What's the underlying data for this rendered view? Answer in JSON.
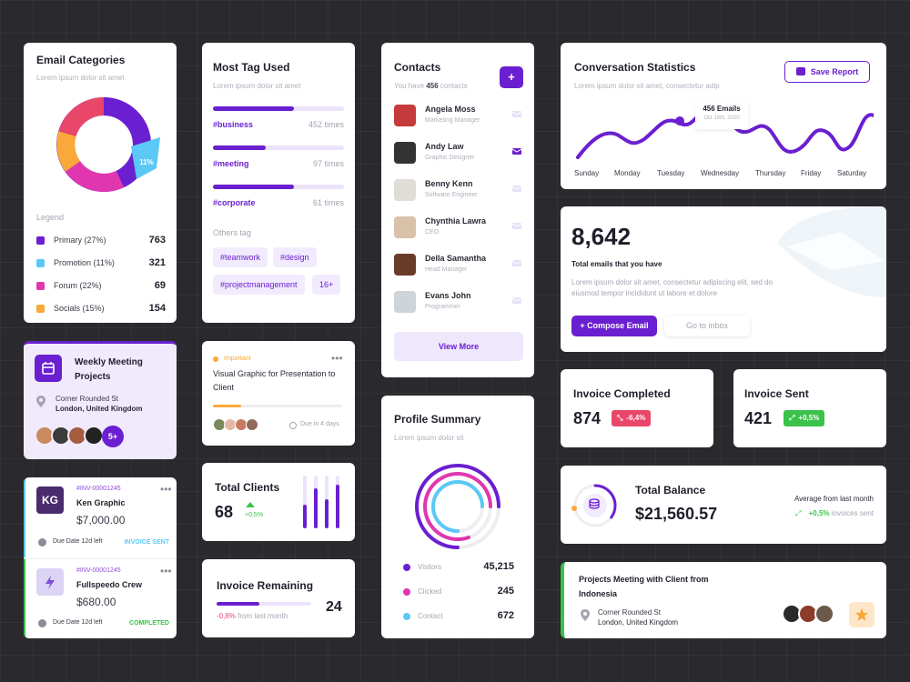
{
  "email_categories": {
    "title": "Email Categories",
    "subtitle": "Lorem ipsum dolor sit amet",
    "donut_label": "11%",
    "legend_title": "Legend",
    "items": [
      {
        "label": "Primary (27%)",
        "value": "763",
        "color": "#6a1fd0"
      },
      {
        "label": "Promotion (11%)",
        "value": "321",
        "color": "#5bc8f5"
      },
      {
        "label": "Forum (22%)",
        "value": "69",
        "color": "#e037b0"
      },
      {
        "label": "Socials (15%)",
        "value": "154",
        "color": "#f9a83a"
      }
    ]
  },
  "most_tag": {
    "title": "Most Tag Used",
    "subtitle": "Lorem ipsum dolor sit amet",
    "tags": [
      {
        "name": "#business",
        "times": "452 times",
        "fill": 0.62
      },
      {
        "name": "#meeting",
        "times": "97 times",
        "fill": 0.4
      },
      {
        "name": "#corporate",
        "times": "61 times",
        "fill": 0.62
      }
    ],
    "others_title": "Others tag",
    "chips": [
      "#teamwork",
      "#design",
      "#projectmanagement",
      "16+"
    ]
  },
  "contacts": {
    "title": "Contacts",
    "subtitle_prefix": "You have",
    "count": "456",
    "subtitle_suffix": "contacts",
    "add_symbol": "+",
    "people": [
      {
        "name": "Angela Moss",
        "role": "Marketing Manager",
        "color": "#c53a3a"
      },
      {
        "name": "Andy Law",
        "role": "Graphic Designer",
        "color": "#333"
      },
      {
        "name": "Benny Kenn",
        "role": "Software Engineer",
        "color": "#e0ddd8"
      },
      {
        "name": "Chynthia Lawra",
        "role": "CEO",
        "color": "#d9c2a9"
      },
      {
        "name": "Della Samantha",
        "role": "Head Manager",
        "color": "#6b3b2a"
      },
      {
        "name": "Evans John",
        "role": "Programmer",
        "color": "#cfd4da"
      }
    ],
    "view_more": "View More"
  },
  "conversation": {
    "title": "Conversation Statistics",
    "subtitle": "Lorem ipsum dolor sit amet, consectetur adip",
    "save_label": "Save Report",
    "tooltip_value": "456 Emails",
    "tooltip_date": "Oct 18th, 2020",
    "days": [
      "Sunday",
      "Monday",
      "Tuesday",
      "Wednesday",
      "Thursday",
      "Friday",
      "Saturday"
    ]
  },
  "total_emails": {
    "value": "8,642",
    "label": "Total emails that you have",
    "desc": "Lorem ipsum dolor sit amet, consectetur adipiscing elit, sed do eiusmod tempor incididunt ut labore et dolore",
    "compose": "+ Compose Email",
    "inbox": "Go to inbox"
  },
  "weekly": {
    "title": "Weekly Meeting Projects",
    "addr1": "Corner Rounded St",
    "addr2": "London, United Kingdom",
    "more": "5+"
  },
  "important": {
    "flag": "Important",
    "text": "Visual Graphic for Presentation to Client",
    "due": "Due in 4 days",
    "progress": 0.22
  },
  "total_clients": {
    "title": "Total Clients",
    "value": "68",
    "change": "+0,5%"
  },
  "invoice_remaining": {
    "title": "Invoice Remaining",
    "value": "24",
    "change": "-0,8%",
    "change_suffix": "from last month",
    "progress": 0.45
  },
  "invoices": [
    {
      "id": "#INV-00001245",
      "initials": "KG",
      "name": "Ken Graphic",
      "amount": "$7,000.00",
      "due": "Due Date 12d left",
      "status": "INVOICE SENT",
      "status_color": "#5bc8f5"
    },
    {
      "id": "#INV-00001245",
      "initials": "",
      "name": "Fullspeedo Crew",
      "amount": "$680.00",
      "due": "Due Date 12d left",
      "status": "COMPLETED",
      "status_color": "#3ac24a"
    }
  ],
  "profile_summary": {
    "title": "Profile Summary",
    "subtitle": "Lorem ipsum dolor sit",
    "rows": [
      {
        "label": "Visitors",
        "value": "45,215",
        "color": "#6a1fd0"
      },
      {
        "label": "Clicked",
        "value": "245",
        "color": "#e037b0"
      },
      {
        "label": "Contact",
        "value": "672",
        "color": "#5bc8f5"
      }
    ]
  },
  "invoice_completed": {
    "title": "Invoice Completed",
    "value": "874",
    "change": "-6,4%"
  },
  "invoice_sent": {
    "title": "Invoice Sent",
    "value": "421",
    "change": "+0,5%"
  },
  "total_balance": {
    "title": "Total Balance",
    "value": "$21,560.57",
    "avg_label": "Average from last month",
    "change": "+0,5%",
    "change_suffix": "invoices sent",
    "ring_fill": 0.35
  },
  "projects_meeting": {
    "title": "Projects Meeting with Client from Indonesia",
    "addr1": "Corner Rounded St",
    "addr2": "London, United Kingdom"
  }
}
